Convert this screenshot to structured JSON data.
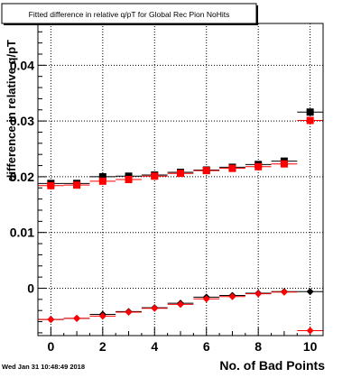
{
  "chart_data": {
    "type": "scatter",
    "title": "Fitted difference in relative q/pT for Global Rec Pion NoHits",
    "xlabel": "No. of Bad Points",
    "ylabel": "difference in relative q/pT",
    "timestamp": "Wed Jan 31 10:48:49 2018",
    "xlim": [
      -0.5,
      10.5
    ],
    "ylim": [
      -0.0085,
      0.0475
    ],
    "x_ticks": [
      0,
      2,
      4,
      6,
      8,
      10
    ],
    "y_ticks": [
      0,
      0.01,
      0.02,
      0.03,
      0.04
    ],
    "y_tick_labels": [
      "0",
      "0.01",
      "0.02",
      "0.03",
      "0.04"
    ],
    "grid": true,
    "series": [
      {
        "marker": "square",
        "color": "#000000",
        "points": [
          {
            "x": 0,
            "y": 0.0188
          },
          {
            "x": 1,
            "y": 0.0188
          },
          {
            "x": 2,
            "y": 0.02
          },
          {
            "x": 3,
            "y": 0.0201
          },
          {
            "x": 4,
            "y": 0.0203
          },
          {
            "x": 5,
            "y": 0.0208
          },
          {
            "x": 6,
            "y": 0.0212
          },
          {
            "x": 7,
            "y": 0.0217
          },
          {
            "x": 8,
            "y": 0.0222
          },
          {
            "x": 9,
            "y": 0.0228
          },
          {
            "x": 10,
            "y": 0.0316
          }
        ]
      },
      {
        "marker": "square",
        "color": "#ff0000",
        "points": [
          {
            "x": 0,
            "y": 0.0184
          },
          {
            "x": 1,
            "y": 0.0185
          },
          {
            "x": 2,
            "y": 0.0192
          },
          {
            "x": 3,
            "y": 0.0195
          },
          {
            "x": 4,
            "y": 0.0201
          },
          {
            "x": 5,
            "y": 0.0206
          },
          {
            "x": 6,
            "y": 0.0211
          },
          {
            "x": 7,
            "y": 0.0215
          },
          {
            "x": 8,
            "y": 0.0218
          },
          {
            "x": 9,
            "y": 0.0223
          },
          {
            "x": 10,
            "y": 0.0301
          }
        ]
      },
      {
        "marker": "diamond",
        "color": "#000000",
        "points": [
          {
            "x": 0,
            "y": -0.0056
          },
          {
            "x": 1,
            "y": -0.0054
          },
          {
            "x": 2,
            "y": -0.0047
          },
          {
            "x": 3,
            "y": -0.0042
          },
          {
            "x": 4,
            "y": -0.0035
          },
          {
            "x": 5,
            "y": -0.0027
          },
          {
            "x": 6,
            "y": -0.0016
          },
          {
            "x": 7,
            "y": -0.0013
          },
          {
            "x": 8,
            "y": -0.0009
          },
          {
            "x": 9,
            "y": -0.0006
          },
          {
            "x": 10,
            "y": -0.0006
          }
        ]
      },
      {
        "marker": "diamond",
        "color": "#ff0000",
        "points": [
          {
            "x": 0,
            "y": -0.0056
          },
          {
            "x": 1,
            "y": -0.0054
          },
          {
            "x": 2,
            "y": -0.005
          },
          {
            "x": 3,
            "y": -0.0043
          },
          {
            "x": 4,
            "y": -0.0036
          },
          {
            "x": 5,
            "y": -0.0029
          },
          {
            "x": 6,
            "y": -0.0019
          },
          {
            "x": 7,
            "y": -0.0015
          },
          {
            "x": 8,
            "y": -0.001
          },
          {
            "x": 9,
            "y": -0.0007
          },
          {
            "x": 10,
            "y": -0.0076
          }
        ]
      }
    ]
  }
}
